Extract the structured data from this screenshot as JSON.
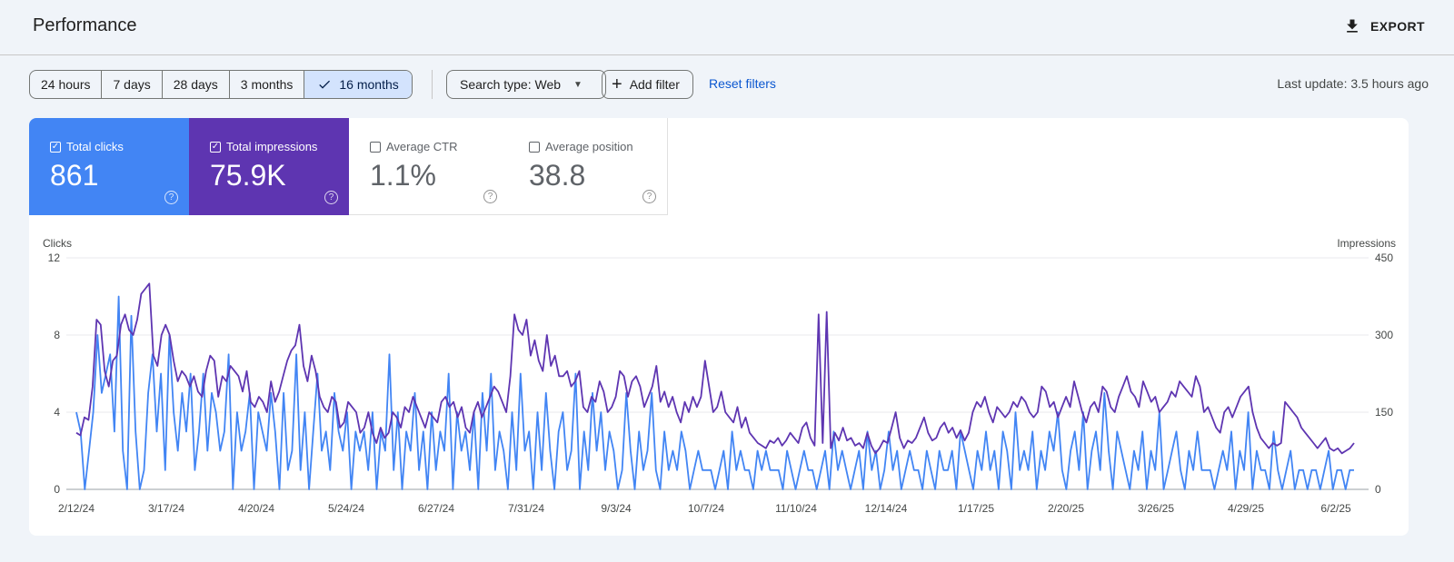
{
  "header": {
    "title": "Performance",
    "export_label": "EXPORT"
  },
  "toolbar": {
    "date_ranges": [
      "24 hours",
      "7 days",
      "28 days",
      "3 months",
      "16 months"
    ],
    "active_range": "16 months",
    "search_type": "Search type: Web",
    "add_filter": "Add filter",
    "reset_filters": "Reset filters",
    "last_update": "Last update: 3.5 hours ago"
  },
  "metrics": {
    "total_clicks": {
      "label": "Total clicks",
      "value": "861",
      "checked": true,
      "color": "#4285f4"
    },
    "total_impressions": {
      "label": "Total impressions",
      "value": "75.9K",
      "checked": true,
      "color": "#5e35b1"
    },
    "average_ctr": {
      "label": "Average CTR",
      "value": "1.1%",
      "checked": false
    },
    "average_position": {
      "label": "Average position",
      "value": "38.8",
      "checked": false
    }
  },
  "chart_data": {
    "type": "line",
    "left_axis_label": "Clicks",
    "right_axis_label": "Impressions",
    "left_ticks": [
      0,
      4,
      8,
      12
    ],
    "right_ticks": [
      0,
      150,
      300,
      450
    ],
    "ylim_left": [
      0,
      12
    ],
    "ylim_right": [
      0,
      450
    ],
    "grid": true,
    "x_tick_labels": [
      "2/12/24",
      "3/17/24",
      "4/20/24",
      "5/24/24",
      "6/27/24",
      "7/31/24",
      "9/3/24",
      "10/7/24",
      "11/10/24",
      "12/14/24",
      "1/17/25",
      "2/20/25",
      "3/26/25",
      "4/29/25",
      "6/2/25"
    ],
    "series": [
      {
        "name": "Clicks",
        "axis": "left",
        "color": "#4285f4",
        "values": [
          4,
          3,
          0,
          2,
          4,
          8,
          5,
          6,
          7,
          3,
          10,
          2,
          0,
          9,
          3,
          0,
          1,
          5,
          7,
          3,
          6,
          1,
          8,
          4,
          2,
          5,
          3,
          6,
          1,
          3,
          6,
          2,
          5,
          4,
          2,
          3,
          7,
          0,
          4,
          2,
          3,
          5,
          0,
          4,
          3,
          2,
          5,
          3,
          0,
          5,
          1,
          2,
          7,
          1,
          4,
          0,
          3,
          6,
          2,
          3,
          1,
          5,
          3,
          2,
          4,
          0,
          3,
          2,
          3,
          1,
          4,
          0,
          3,
          2,
          7,
          1,
          4,
          0,
          3,
          2,
          5,
          1,
          3,
          0,
          4,
          1,
          3,
          2,
          6,
          0,
          4,
          2,
          3,
          1,
          4,
          0,
          5,
          2,
          6,
          1,
          3,
          2,
          0,
          4,
          1,
          6,
          2,
          3,
          0,
          4,
          1,
          5,
          2,
          0,
          3,
          4,
          1,
          2,
          6,
          0,
          3,
          1,
          5,
          2,
          4,
          1,
          3,
          2,
          0,
          1,
          5,
          2,
          0,
          3,
          1,
          2,
          5,
          1,
          0,
          3,
          1,
          2,
          1,
          3,
          2,
          0,
          1,
          2,
          1,
          1,
          1,
          0,
          1,
          2,
          0,
          3,
          1,
          2,
          1,
          1,
          0,
          2,
          1,
          2,
          1,
          1,
          1,
          0,
          2,
          1,
          0,
          1,
          2,
          1,
          1,
          0,
          1,
          2,
          0,
          3,
          1,
          2,
          1,
          0,
          1,
          2,
          0,
          3,
          1,
          2,
          0,
          1,
          3,
          1,
          2,
          0,
          1,
          2,
          1,
          1,
          0,
          2,
          1,
          0,
          2,
          1,
          1,
          2,
          0,
          3,
          2,
          1,
          0,
          2,
          1,
          3,
          1,
          2,
          0,
          3,
          2,
          0,
          4,
          1,
          2,
          1,
          3,
          0,
          2,
          1,
          3,
          2,
          4,
          1,
          0,
          2,
          3,
          1,
          4,
          0,
          2,
          3,
          1,
          5,
          2,
          0,
          3,
          2,
          1,
          0,
          2,
          1,
          3,
          0,
          2,
          1,
          4,
          0,
          1,
          2,
          3,
          1,
          0,
          2,
          1,
          3,
          1,
          1,
          1,
          0,
          1,
          2,
          1,
          3,
          0,
          2,
          1,
          4,
          0,
          2,
          1,
          1,
          0,
          3,
          1,
          0,
          1,
          2,
          0,
          1,
          1,
          0,
          1,
          1,
          0,
          1,
          2,
          0,
          1,
          1,
          0,
          1,
          1
        ]
      },
      {
        "name": "Impressions",
        "axis": "right",
        "color": "#5e35b1",
        "values": [
          110,
          105,
          140,
          135,
          200,
          330,
          320,
          230,
          200,
          250,
          260,
          320,
          340,
          310,
          300,
          330,
          380,
          390,
          400,
          260,
          240,
          300,
          320,
          300,
          250,
          210,
          230,
          220,
          200,
          220,
          190,
          180,
          230,
          260,
          250,
          180,
          220,
          210,
          240,
          230,
          220,
          190,
          230,
          170,
          160,
          180,
          170,
          150,
          210,
          170,
          190,
          220,
          250,
          270,
          280,
          320,
          240,
          210,
          260,
          230,
          180,
          160,
          150,
          180,
          170,
          120,
          130,
          170,
          160,
          150,
          110,
          120,
          150,
          110,
          90,
          120,
          100,
          110,
          150,
          140,
          120,
          160,
          150,
          180,
          160,
          140,
          120,
          150,
          140,
          130,
          170,
          180,
          160,
          170,
          140,
          160,
          120,
          110,
          150,
          170,
          140,
          160,
          180,
          200,
          190,
          170,
          150,
          220,
          340,
          310,
          300,
          330,
          260,
          290,
          250,
          230,
          300,
          240,
          260,
          220,
          220,
          230,
          200,
          210,
          230,
          160,
          150,
          180,
          170,
          210,
          190,
          150,
          160,
          180,
          230,
          220,
          180,
          210,
          220,
          200,
          160,
          180,
          200,
          240,
          170,
          190,
          160,
          180,
          150,
          130,
          170,
          150,
          180,
          160,
          180,
          250,
          200,
          150,
          160,
          190,
          150,
          140,
          130,
          160,
          120,
          140,
          110,
          100,
          90,
          85,
          80,
          95,
          90,
          100,
          85,
          95,
          110,
          100,
          90,
          120,
          130,
          100,
          85,
          340,
          90,
          345,
          80,
          110,
          95,
          120,
          95,
          100,
          85,
          90,
          80,
          110,
          85,
          70,
          80,
          95,
          90,
          120,
          150,
          100,
          80,
          95,
          90,
          100,
          120,
          140,
          110,
          95,
          100,
          120,
          130,
          110,
          120,
          100,
          115,
          95,
          110,
          150,
          170,
          160,
          180,
          150,
          130,
          160,
          150,
          140,
          150,
          170,
          160,
          180,
          170,
          150,
          140,
          150,
          200,
          190,
          160,
          170,
          140,
          160,
          180,
          160,
          210,
          180,
          150,
          130,
          160,
          170,
          150,
          200,
          190,
          160,
          150,
          180,
          200,
          220,
          190,
          180,
          160,
          210,
          190,
          170,
          180,
          150,
          160,
          170,
          190,
          180,
          210,
          200,
          190,
          180,
          220,
          200,
          150,
          160,
          140,
          120,
          110,
          150,
          160,
          140,
          160,
          180,
          190,
          200,
          150,
          120,
          100,
          90,
          80,
          90,
          85,
          90,
          170,
          160,
          150,
          140,
          120,
          110,
          100,
          90,
          80,
          90,
          100,
          80,
          75,
          80,
          70,
          75,
          80,
          90
        ]
      }
    ]
  }
}
